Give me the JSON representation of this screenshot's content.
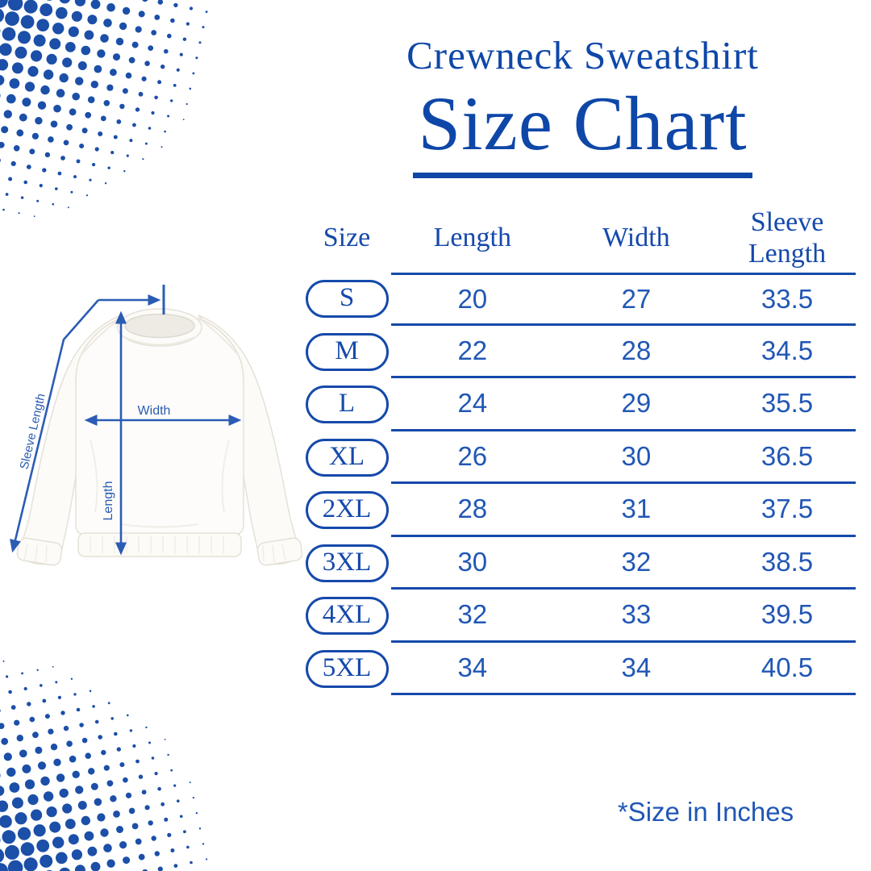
{
  "colors": {
    "title_blue": "#0E47A8",
    "table_blue": "#1549AB",
    "number_blue": "#2157B5",
    "arrow_blue": "#2B5CB4",
    "dot_blue": "#1B4FA8"
  },
  "header": {
    "subtitle": "Crewneck Sweatshirt",
    "title": "Size Chart"
  },
  "chart_data": {
    "type": "table",
    "title": "Crewneck Sweatshirt Size Chart",
    "columns": [
      "Size",
      "Length",
      "Width",
      "Sleeve Length"
    ],
    "rows": [
      [
        "S",
        20,
        27,
        33.5
      ],
      [
        "M",
        22,
        28,
        34.5
      ],
      [
        "L",
        24,
        29,
        35.5
      ],
      [
        "XL",
        26,
        30,
        36.5
      ],
      [
        "2XL",
        28,
        31,
        37.5
      ],
      [
        "3XL",
        30,
        32,
        38.5
      ],
      [
        "4XL",
        32,
        33,
        39.5
      ],
      [
        "5XL",
        34,
        34,
        40.5
      ]
    ],
    "units_note": "*Size in Inches"
  },
  "diagram": {
    "labels": {
      "width": "Width",
      "length": "Length",
      "sleeve": "Sleeve Length"
    }
  }
}
